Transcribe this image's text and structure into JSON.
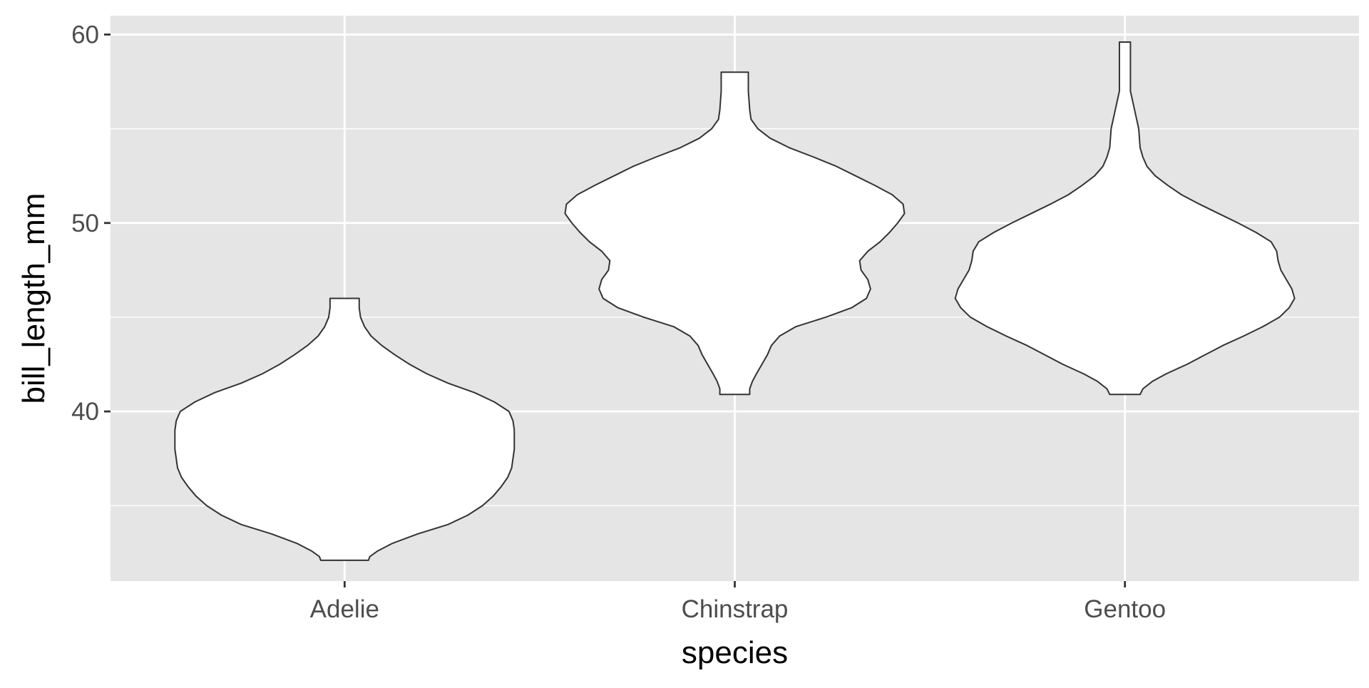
{
  "chart_data": {
    "type": "violin",
    "xlabel": "species",
    "ylabel": "bill_length_mm",
    "categories": [
      "Adelie",
      "Chinstrap",
      "Gentoo"
    ],
    "ylim": [
      31,
      61
    ],
    "yticks": [
      40,
      50,
      60
    ],
    "y_minor_gridlines": [
      35,
      45,
      55
    ],
    "grid": true,
    "background": "#e5e5e5",
    "grid_color": "#ffffff",
    "violin_fill": "#ffffff",
    "violin_stroke": "#333333",
    "violins": [
      {
        "category": "Adelie",
        "min": 32.1,
        "max": 46.0,
        "density_max": 0.128,
        "profile": [
          [
            32.1,
            0.018
          ],
          [
            32.3,
            0.019
          ],
          [
            32.6,
            0.025
          ],
          [
            33.0,
            0.036
          ],
          [
            33.5,
            0.055
          ],
          [
            34.0,
            0.078
          ],
          [
            34.5,
            0.093
          ],
          [
            35.0,
            0.104
          ],
          [
            35.5,
            0.112
          ],
          [
            36.0,
            0.118
          ],
          [
            36.5,
            0.123
          ],
          [
            37.0,
            0.126
          ],
          [
            37.5,
            0.127
          ],
          [
            38.0,
            0.128
          ],
          [
            38.5,
            0.128
          ],
          [
            39.0,
            0.128
          ],
          [
            39.5,
            0.127
          ],
          [
            40.0,
            0.124
          ],
          [
            40.5,
            0.113
          ],
          [
            41.0,
            0.098
          ],
          [
            41.5,
            0.078
          ],
          [
            42.0,
            0.062
          ],
          [
            42.5,
            0.049
          ],
          [
            43.0,
            0.038
          ],
          [
            43.5,
            0.028
          ],
          [
            44.0,
            0.02
          ],
          [
            44.5,
            0.015
          ],
          [
            45.0,
            0.012
          ],
          [
            45.5,
            0.011
          ],
          [
            46.0,
            0.011
          ]
        ]
      },
      {
        "category": "Chinstrap",
        "min": 40.9,
        "max": 58.0,
        "density_max": 0.125,
        "profile": [
          [
            40.9,
            0.011
          ],
          [
            41.2,
            0.011
          ],
          [
            41.6,
            0.013
          ],
          [
            42.0,
            0.016
          ],
          [
            42.5,
            0.02
          ],
          [
            43.0,
            0.024
          ],
          [
            43.5,
            0.027
          ],
          [
            44.0,
            0.033
          ],
          [
            44.5,
            0.045
          ],
          [
            45.0,
            0.067
          ],
          [
            45.5,
            0.086
          ],
          [
            46.0,
            0.097
          ],
          [
            46.5,
            0.1
          ],
          [
            47.0,
            0.098
          ],
          [
            47.5,
            0.093
          ],
          [
            48.0,
            0.092
          ],
          [
            48.5,
            0.098
          ],
          [
            49.0,
            0.107
          ],
          [
            49.5,
            0.114
          ],
          [
            50.0,
            0.12
          ],
          [
            50.5,
            0.125
          ],
          [
            51.0,
            0.124
          ],
          [
            51.5,
            0.116
          ],
          [
            52.0,
            0.103
          ],
          [
            52.5,
            0.089
          ],
          [
            53.0,
            0.075
          ],
          [
            53.5,
            0.058
          ],
          [
            54.0,
            0.04
          ],
          [
            54.5,
            0.026
          ],
          [
            55.0,
            0.017
          ],
          [
            55.5,
            0.012
          ],
          [
            56.0,
            0.011
          ],
          [
            57.0,
            0.01
          ],
          [
            58.0,
            0.01
          ]
        ]
      },
      {
        "category": "Gentoo",
        "min": 40.9,
        "max": 59.6,
        "density_max": 0.123,
        "profile": [
          [
            40.9,
            0.011
          ],
          [
            41.2,
            0.013
          ],
          [
            41.6,
            0.02
          ],
          [
            42.0,
            0.03
          ],
          [
            42.5,
            0.045
          ],
          [
            43.0,
            0.058
          ],
          [
            43.5,
            0.071
          ],
          [
            44.0,
            0.086
          ],
          [
            44.5,
            0.1
          ],
          [
            45.0,
            0.112
          ],
          [
            45.5,
            0.119
          ],
          [
            46.0,
            0.123
          ],
          [
            46.5,
            0.121
          ],
          [
            47.0,
            0.117
          ],
          [
            47.5,
            0.113
          ],
          [
            48.0,
            0.111
          ],
          [
            48.5,
            0.11
          ],
          [
            49.0,
            0.106
          ],
          [
            49.5,
            0.095
          ],
          [
            50.0,
            0.082
          ],
          [
            50.5,
            0.068
          ],
          [
            51.0,
            0.054
          ],
          [
            51.5,
            0.041
          ],
          [
            52.0,
            0.031
          ],
          [
            52.5,
            0.022
          ],
          [
            53.0,
            0.016
          ],
          [
            53.5,
            0.013
          ],
          [
            54.0,
            0.011
          ],
          [
            55.0,
            0.01
          ],
          [
            56.0,
            0.007
          ],
          [
            57.0,
            0.004
          ],
          [
            58.0,
            0.004
          ],
          [
            59.0,
            0.004
          ],
          [
            59.6,
            0.004
          ]
        ]
      }
    ]
  }
}
